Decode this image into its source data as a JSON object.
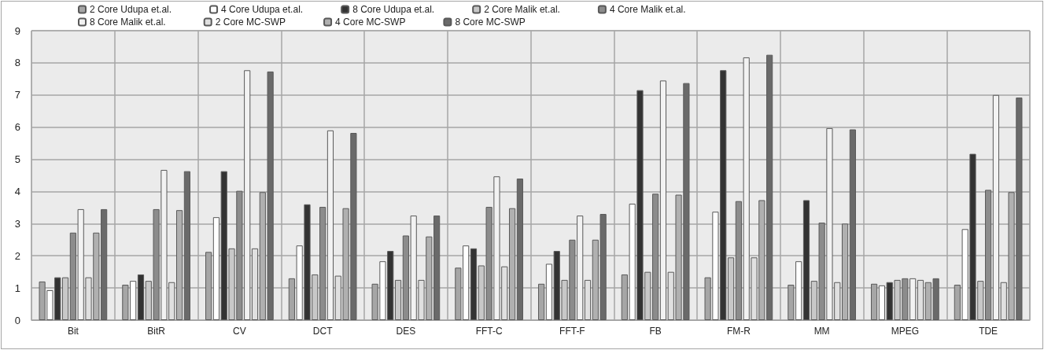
{
  "chart_data": {
    "type": "bar",
    "categories": [
      "Bit",
      "BitR",
      "CV",
      "DCT",
      "DES",
      "FFT-C",
      "FFT-F",
      "FB",
      "FM-R",
      "MM",
      "MPEG",
      "TDE"
    ],
    "series": [
      {
        "name": "2 Core Udupa et.al.",
        "color": "#a6a6a6",
        "values": [
          1.2,
          1.1,
          2.12,
          1.3,
          1.13,
          1.63,
          1.13,
          1.42,
          1.33,
          1.1,
          1.13,
          1.1
        ]
      },
      {
        "name": "4 Core Udupa et.al.",
        "color": "#ffffff",
        "values": [
          0.93,
          1.22,
          3.2,
          2.32,
          1.83,
          2.32,
          1.75,
          3.62,
          3.37,
          1.83,
          1.08,
          2.83
        ]
      },
      {
        "name": "8 Core Udupa et.al.",
        "color": "#333333",
        "values": [
          1.33,
          1.42,
          4.63,
          3.6,
          2.15,
          2.23,
          2.15,
          7.15,
          7.77,
          3.73,
          1.18,
          5.17
        ]
      },
      {
        "name": "2 Core Malik et.al.",
        "color": "#c8c8c8",
        "values": [
          1.33,
          1.22,
          2.23,
          1.42,
          1.25,
          1.7,
          1.25,
          1.5,
          1.95,
          1.22,
          1.25,
          1.22
        ]
      },
      {
        "name": "4 Core Malik et.al.",
        "color": "#8c8c8c",
        "values": [
          2.72,
          3.45,
          4.02,
          3.52,
          2.63,
          3.52,
          2.5,
          3.93,
          3.7,
          3.03,
          1.3,
          4.05
        ]
      },
      {
        "name": "8 Core Malik et.al.",
        "color": "#f2f2f2",
        "values": [
          3.45,
          4.67,
          7.77,
          5.9,
          3.25,
          4.47,
          3.25,
          7.45,
          8.17,
          5.97,
          1.3,
          7.0
        ]
      },
      {
        "name": "2 Core MC-SWP",
        "color": "#e0e0e0",
        "values": [
          1.33,
          1.18,
          2.23,
          1.38,
          1.25,
          1.67,
          1.25,
          1.5,
          1.95,
          1.18,
          1.25,
          1.18
        ]
      },
      {
        "name": "4 Core MC-SWP",
        "color": "#b0b0b0",
        "values": [
          2.72,
          3.42,
          3.98,
          3.48,
          2.6,
          3.48,
          2.5,
          3.9,
          3.73,
          3.0,
          1.18,
          3.98
        ]
      },
      {
        "name": "8 Core MC-SWP",
        "color": "#6a6a6a",
        "values": [
          3.45,
          4.63,
          7.73,
          5.82,
          3.25,
          4.4,
          3.3,
          7.37,
          8.25,
          5.93,
          1.3,
          6.92
        ]
      }
    ],
    "ylim": [
      0,
      9
    ],
    "yticks": [
      0,
      1,
      2,
      3,
      4,
      5,
      6,
      7,
      8,
      9
    ],
    "grid": true,
    "legend": "top"
  }
}
